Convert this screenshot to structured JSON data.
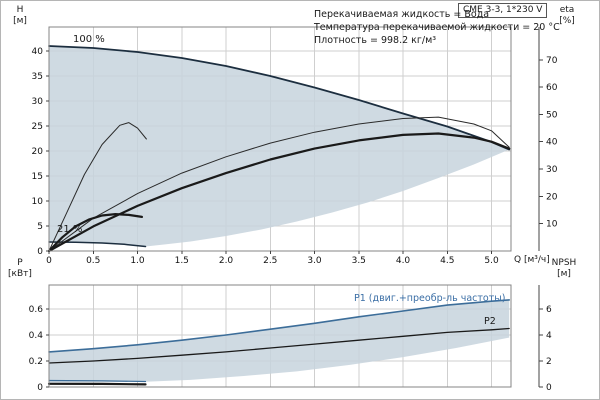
{
  "colors": {
    "envelope": "#c7d3dd",
    "grid": "#cfcfcf",
    "frame": "#848484",
    "axis": "#444444",
    "curve_dark": "#1c2e3f",
    "curve_black": "#1a1a1a",
    "p1_blue": "#3c6d99",
    "p1_label_blue": "#3a6ea5"
  },
  "chart_data": [
    {
      "type": "line",
      "title": "CME 3-3, 1*230 V",
      "notes": [
        "Перекачиваемая жидкость = Вода",
        "Температура перекачиваемой жидкости = 20 °C",
        "Плотность = 998.2 кг/м³"
      ],
      "x": {
        "label": "Q [м³/ч]",
        "min": 0,
        "max": 5.22,
        "ticks": [
          {
            "v": 0,
            "t": "0"
          },
          {
            "v": 0.5,
            "t": "0.5"
          },
          {
            "v": 1,
            "t": "1.0"
          },
          {
            "v": 1.5,
            "t": "1.5"
          },
          {
            "v": 2,
            "t": "2.0"
          },
          {
            "v": 2.5,
            "t": "2.5"
          },
          {
            "v": 3,
            "t": "3.0"
          },
          {
            "v": 3.5,
            "t": "3.5"
          },
          {
            "v": 4,
            "t": "4.0"
          },
          {
            "v": 4.5,
            "t": "4.5"
          },
          {
            "v": 5,
            "t": "5.0"
          }
        ]
      },
      "y_left": {
        "label": "H",
        "unit": "[м]",
        "min": 0,
        "max": 44.8,
        "ticks": [
          {
            "v": 0,
            "t": "0"
          },
          {
            "v": 5,
            "t": "5"
          },
          {
            "v": 10,
            "t": "10"
          },
          {
            "v": 15,
            "t": "15"
          },
          {
            "v": 20,
            "t": "20"
          },
          {
            "v": 25,
            "t": "25"
          },
          {
            "v": 30,
            "t": "30"
          },
          {
            "v": 35,
            "t": "35"
          },
          {
            "v": 40,
            "t": "40"
          }
        ]
      },
      "y_right": {
        "label": "eta",
        "unit": "[%]",
        "min": 0,
        "max": 82,
        "ticks": [
          {
            "v": 10,
            "t": "10"
          },
          {
            "v": 20,
            "t": "20"
          },
          {
            "v": 30,
            "t": "30"
          },
          {
            "v": 40,
            "t": "40"
          },
          {
            "v": 50,
            "t": "50"
          },
          {
            "v": 60,
            "t": "60"
          },
          {
            "v": 70,
            "t": "70"
          }
        ]
      },
      "annotations": [
        {
          "text": "100 %"
        },
        {
          "text": "21 %"
        }
      ],
      "envelope": {
        "color": "#c7d3dd",
        "opacity": 0.85,
        "points": [
          [
            0,
            41
          ],
          [
            0.5,
            40.6
          ],
          [
            1,
            39.8
          ],
          [
            1.5,
            38.6
          ],
          [
            2,
            37
          ],
          [
            2.5,
            35
          ],
          [
            3,
            32.7
          ],
          [
            3.5,
            30.2
          ],
          [
            4,
            27.5
          ],
          [
            4.5,
            24.9
          ],
          [
            5,
            21.8
          ],
          [
            5.2,
            20.3
          ],
          [
            4.8,
            17.3
          ],
          [
            4.4,
            14.6
          ],
          [
            4.0,
            12.0
          ],
          [
            3.6,
            9.7
          ],
          [
            3.2,
            7.7
          ],
          [
            2.8,
            5.9
          ],
          [
            2.4,
            4.3
          ],
          [
            2.0,
            3.0
          ],
          [
            1.6,
            1.9
          ],
          [
            1.3,
            1.3
          ],
          [
            1.09,
            0.9
          ],
          [
            0.85,
            1.35
          ],
          [
            0.6,
            1.6
          ],
          [
            0.3,
            1.75
          ],
          [
            0,
            1.8
          ]
        ]
      },
      "series": [
        {
          "name": "head-curve-100pct",
          "axis": "left",
          "color": "#1c2e3f",
          "width": 1.8,
          "points": [
            [
              0,
              41
            ],
            [
              0.5,
              40.6
            ],
            [
              1,
              39.8
            ],
            [
              1.5,
              38.6
            ],
            [
              2,
              37
            ],
            [
              2.5,
              35
            ],
            [
              3,
              32.7
            ],
            [
              3.5,
              30.2
            ],
            [
              4,
              27.5
            ],
            [
              4.5,
              24.9
            ],
            [
              5,
              21.8
            ],
            [
              5.2,
              20.3
            ]
          ]
        },
        {
          "name": "head-curve-21pct",
          "axis": "left",
          "color": "#1c2e3f",
          "width": 1.5,
          "points": [
            [
              0,
              1.8
            ],
            [
              0.3,
              1.75
            ],
            [
              0.6,
              1.6
            ],
            [
              0.85,
              1.35
            ],
            [
              1.09,
              0.9
            ]
          ]
        },
        {
          "name": "eta-pump-curve",
          "axis": "right",
          "color": "#2a2a2a",
          "width": 1,
          "points": [
            [
              0,
              0
            ],
            [
              0.5,
              12
            ],
            [
              1,
              21
            ],
            [
              1.5,
              28.5
            ],
            [
              2,
              34.5
            ],
            [
              2.5,
              39.5
            ],
            [
              3,
              43.5
            ],
            [
              3.5,
              46.5
            ],
            [
              4,
              48.5
            ],
            [
              4.4,
              49
            ],
            [
              4.8,
              46.5
            ],
            [
              5,
              44
            ],
            [
              5.2,
              38
            ]
          ]
        },
        {
          "name": "eta-total-curve",
          "axis": "right",
          "color": "#1a1a1a",
          "width": 2.2,
          "points": [
            [
              0,
              0
            ],
            [
              0.5,
              9
            ],
            [
              1,
              16.5
            ],
            [
              1.5,
              23
            ],
            [
              2,
              28.5
            ],
            [
              2.5,
              33.5
            ],
            [
              3,
              37.5
            ],
            [
              3.5,
              40.5
            ],
            [
              4,
              42.5
            ],
            [
              4.4,
              43
            ],
            [
              4.8,
              41.5
            ],
            [
              5,
              40
            ],
            [
              5.2,
              37.5
            ]
          ]
        },
        {
          "name": "eta-pump-curve-21pct",
          "axis": "right",
          "color": "#2a2a2a",
          "width": 1,
          "points": [
            [
              0,
              0
            ],
            [
              0.2,
              14
            ],
            [
              0.4,
              28
            ],
            [
              0.6,
              39
            ],
            [
              0.8,
              46
            ],
            [
              0.9,
              47
            ],
            [
              1.0,
              45
            ],
            [
              1.1,
              41
            ]
          ]
        },
        {
          "name": "eta-total-curve-21pct",
          "axis": "right",
          "color": "#1a1a1a",
          "width": 2.2,
          "points": [
            [
              0,
              0
            ],
            [
              0.15,
              5
            ],
            [
              0.3,
              9
            ],
            [
              0.45,
              11.5
            ],
            [
              0.6,
              13
            ],
            [
              0.75,
              13.5
            ],
            [
              0.9,
              13.2
            ],
            [
              1.05,
              12.5
            ]
          ]
        }
      ]
    },
    {
      "type": "line",
      "x": {
        "label": "",
        "min": 0,
        "max": 5.22,
        "ticks": [
          {
            "v": 0.5,
            "t": ""
          },
          {
            "v": 1,
            "t": ""
          },
          {
            "v": 1.5,
            "t": ""
          },
          {
            "v": 2,
            "t": ""
          },
          {
            "v": 2.5,
            "t": ""
          },
          {
            "v": 3,
            "t": ""
          },
          {
            "v": 3.5,
            "t": ""
          },
          {
            "v": 4,
            "t": ""
          },
          {
            "v": 4.5,
            "t": ""
          },
          {
            "v": 5,
            "t": ""
          }
        ]
      },
      "y_left": {
        "label": "P",
        "unit": "[кВт]",
        "min": 0,
        "max": 0.785,
        "ticks": [
          {
            "v": 0,
            "t": "0"
          },
          {
            "v": 0.2,
            "t": "0.2"
          },
          {
            "v": 0.4,
            "t": "0.4"
          },
          {
            "v": 0.6,
            "t": "0.6"
          }
        ]
      },
      "y_right": {
        "label": "NPSH",
        "unit": "[м]",
        "min": 0,
        "max": 7.85,
        "ticks": [
          {
            "v": 0,
            "t": "0"
          },
          {
            "v": 2,
            "t": "2"
          },
          {
            "v": 4,
            "t": "4"
          },
          {
            "v": 6,
            "t": "6"
          }
        ]
      },
      "annotations": [
        {
          "text": "P1 (двиг.+преобр-ль частоты)"
        },
        {
          "text": "P2"
        }
      ],
      "envelope": {
        "color": "#c7d3dd",
        "opacity": 0.85,
        "points": [
          [
            0,
            0.27
          ],
          [
            0.5,
            0.295
          ],
          [
            1,
            0.325
          ],
          [
            1.5,
            0.36
          ],
          [
            2,
            0.4
          ],
          [
            2.5,
            0.445
          ],
          [
            3,
            0.49
          ],
          [
            3.5,
            0.54
          ],
          [
            4,
            0.585
          ],
          [
            4.5,
            0.63
          ],
          [
            5,
            0.66
          ],
          [
            5.2,
            0.67
          ],
          [
            5.2,
            0.38
          ],
          [
            4.6,
            0.3
          ],
          [
            4.0,
            0.23
          ],
          [
            3.4,
            0.17
          ],
          [
            2.8,
            0.12
          ],
          [
            2.2,
            0.085
          ],
          [
            1.6,
            0.055
          ],
          [
            1.09,
            0.04
          ],
          [
            0.5,
            0.037
          ],
          [
            0,
            0.035
          ]
        ]
      },
      "series": [
        {
          "name": "p1-curve",
          "axis": "left",
          "color": "#3c6d99",
          "width": 1.6,
          "points": [
            [
              0,
              0.27
            ],
            [
              0.5,
              0.295
            ],
            [
              1,
              0.325
            ],
            [
              1.5,
              0.36
            ],
            [
              2,
              0.4
            ],
            [
              2.5,
              0.445
            ],
            [
              3,
              0.49
            ],
            [
              3.5,
              0.54
            ],
            [
              4,
              0.585
            ],
            [
              4.5,
              0.63
            ],
            [
              5,
              0.66
            ],
            [
              5.2,
              0.67
            ]
          ]
        },
        {
          "name": "p2-curve",
          "axis": "left",
          "color": "#1a1a1a",
          "width": 1.3,
          "points": [
            [
              0,
              0.185
            ],
            [
              0.5,
              0.2
            ],
            [
              1,
              0.22
            ],
            [
              1.5,
              0.245
            ],
            [
              2,
              0.27
            ],
            [
              2.5,
              0.3
            ],
            [
              3,
              0.33
            ],
            [
              3.5,
              0.36
            ],
            [
              4,
              0.39
            ],
            [
              4.5,
              0.42
            ],
            [
              5,
              0.44
            ],
            [
              5.2,
              0.45
            ]
          ]
        },
        {
          "name": "p1-curve-21pct",
          "axis": "left",
          "color": "#3c6d99",
          "width": 1.2,
          "points": [
            [
              0,
              0.05
            ],
            [
              0.6,
              0.048
            ],
            [
              1.09,
              0.042
            ]
          ]
        },
        {
          "name": "p2-curve-21pct",
          "axis": "left",
          "color": "#1a1a1a",
          "width": 2.2,
          "points": [
            [
              0,
              0.025
            ],
            [
              0.6,
              0.024
            ],
            [
              1.09,
              0.02
            ]
          ]
        }
      ]
    }
  ]
}
